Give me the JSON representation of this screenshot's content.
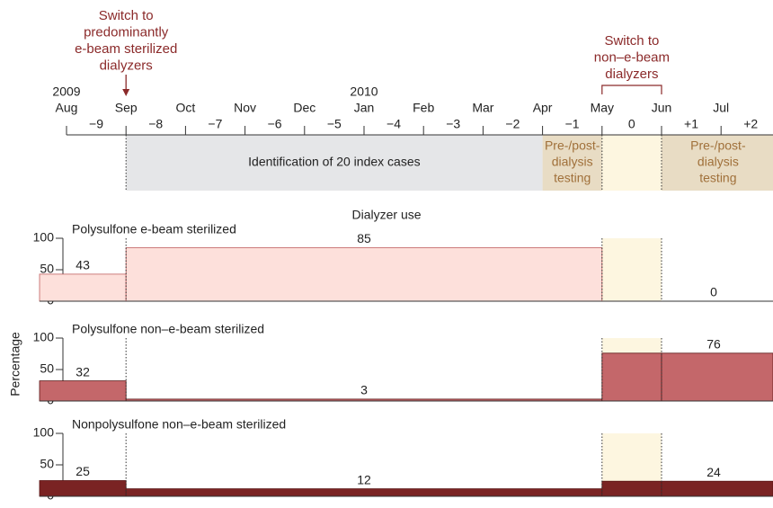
{
  "timeline": {
    "years": [
      "2009",
      "2010"
    ],
    "months": [
      "Aug",
      "Sep",
      "Oct",
      "Nov",
      "Dec",
      "Jan",
      "Feb",
      "Mar",
      "Apr",
      "May",
      "Jun",
      "Jul"
    ],
    "offsets": [
      "−9",
      "−8",
      "−7",
      "−6",
      "−5",
      "−4",
      "−3",
      "−2",
      "−1",
      "0",
      "+1",
      "+2"
    ],
    "annotations": [
      {
        "lines": [
          "Switch to",
          "predominantly",
          "e-beam sterilized",
          "dialyzers"
        ]
      },
      {
        "lines": [
          "Switch to",
          "non–e-beam",
          "dialyzers"
        ]
      }
    ],
    "phases": [
      {
        "lines": [
          "Identification of 20 index cases"
        ]
      },
      {
        "lines": [
          "Pre-/post-",
          "dialysis",
          "testing"
        ]
      },
      {
        "lines": [
          "Pre-/post-",
          "dialysis",
          "testing"
        ]
      }
    ]
  },
  "chart_title": "Dialyzer use",
  "y_label": "Percentage",
  "chart_data": [
    {
      "type": "step",
      "title": "Polysulfone e-beam sterilized",
      "values": [
        43,
        85,
        null,
        0
      ],
      "color": "#fde0db",
      "ylim": [
        0,
        100
      ],
      "yticks": [
        0,
        50,
        100
      ]
    },
    {
      "type": "step",
      "title": "Polysulfone non–e-beam sterilized",
      "values": [
        32,
        3,
        76,
        76
      ],
      "color": "#c4676a",
      "ylim": [
        0,
        100
      ],
      "yticks": [
        0,
        50,
        100
      ]
    },
    {
      "type": "step",
      "title": "Nonpolysulfone non–e-beam sterilized",
      "values": [
        25,
        12,
        24,
        24
      ],
      "color": "#7a2323",
      "ylim": [
        0,
        100
      ],
      "yticks": [
        0,
        50,
        100
      ]
    }
  ]
}
